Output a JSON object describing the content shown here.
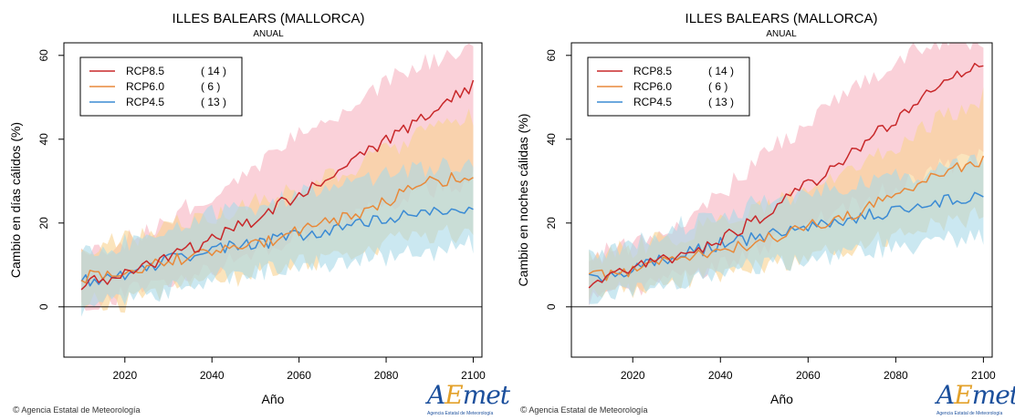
{
  "colors": {
    "RCP8.5": "#c8282a",
    "RCP6.0": "#e8893a",
    "RCP4.5": "#3b8bd4",
    "RCP8.5_band": "#f7b3c0",
    "RCP6.0_band": "#f8d28f",
    "RCP4.5_band": "#a8d8e8"
  },
  "credit": "Agencia Estatal de Meteorología",
  "logo": {
    "a": "A",
    "e": "E",
    "met": "met",
    "sub": "Agencia Estatal de Meteorología"
  },
  "chart_data": [
    {
      "type": "line",
      "title": "ILLES BALEARS (MALLORCA)",
      "subtitle": "ANUAL",
      "xlabel": "Año",
      "ylabel": "Cambio en días cálidos (%)",
      "xlim": [
        2006,
        2102
      ],
      "ylim": [
        -12,
        63
      ],
      "xticks": [
        2020,
        2040,
        2060,
        2080,
        2100
      ],
      "yticks": [
        0,
        20,
        40,
        60
      ],
      "grid": false,
      "zero_line": true,
      "legend_position": "top-left",
      "shaded_ranges": true,
      "series": [
        {
          "name": "RCP8.5",
          "count": "( 14 )",
          "x": [
            2010,
            2020,
            2030,
            2040,
            2050,
            2060,
            2070,
            2080,
            2090,
            2100
          ],
          "values": [
            5,
            8,
            12,
            16,
            21,
            27,
            33,
            40,
            46,
            53
          ],
          "range_low": [
            1,
            3,
            6,
            9,
            13,
            17,
            21,
            25,
            28,
            30
          ],
          "range_high": [
            13,
            16,
            21,
            27,
            34,
            41,
            47,
            54,
            59,
            62
          ]
        },
        {
          "name": "RCP6.0",
          "count": "(   6 )",
          "x": [
            2010,
            2020,
            2030,
            2040,
            2050,
            2060,
            2070,
            2080,
            2090,
            2100
          ],
          "values": [
            7,
            8,
            11,
            13,
            15,
            18,
            21,
            25,
            30,
            31
          ],
          "range_low": [
            1,
            1,
            4,
            6,
            8,
            10,
            12,
            15,
            17,
            18
          ],
          "range_high": [
            14,
            16,
            19,
            22,
            25,
            28,
            32,
            37,
            43,
            45
          ]
        },
        {
          "name": "RCP4.5",
          "count": "( 13 )",
          "x": [
            2010,
            2020,
            2030,
            2040,
            2050,
            2060,
            2070,
            2080,
            2090,
            2100
          ],
          "values": [
            6,
            8,
            11,
            14,
            15,
            17,
            19,
            21,
            22,
            24
          ],
          "range_low": [
            0,
            2,
            4,
            7,
            8,
            10,
            11,
            12,
            13,
            15
          ],
          "range_high": [
            12,
            15,
            19,
            22,
            24,
            27,
            29,
            32,
            33,
            35
          ]
        }
      ]
    },
    {
      "type": "line",
      "title": "ILLES BALEARS (MALLORCA)",
      "subtitle": "ANUAL",
      "xlabel": "Año",
      "ylabel": "Cambio en noches cálidas (%)",
      "xlim": [
        2006,
        2102
      ],
      "ylim": [
        -12,
        63
      ],
      "xticks": [
        2020,
        2040,
        2060,
        2080,
        2100
      ],
      "yticks": [
        0,
        20,
        40,
        60
      ],
      "grid": false,
      "zero_line": true,
      "legend_position": "top-left",
      "shaded_ranges": true,
      "series": [
        {
          "name": "RCP8.5",
          "count": "( 14 )",
          "x": [
            2010,
            2020,
            2030,
            2040,
            2050,
            2060,
            2070,
            2080,
            2090,
            2100
          ],
          "values": [
            6,
            9,
            12,
            16,
            22,
            29,
            37,
            45,
            53,
            58
          ],
          "range_low": [
            2,
            4,
            7,
            10,
            14,
            19,
            24,
            29,
            33,
            36
          ],
          "range_high": [
            12,
            15,
            20,
            27,
            36,
            44,
            52,
            59,
            63,
            63
          ]
        },
        {
          "name": "RCP6.0",
          "count": "(   6 )",
          "x": [
            2010,
            2020,
            2030,
            2040,
            2050,
            2060,
            2070,
            2080,
            2090,
            2100
          ],
          "values": [
            7,
            9,
            11,
            13,
            16,
            19,
            22,
            27,
            32,
            35
          ],
          "range_low": [
            3,
            4,
            6,
            8,
            10,
            12,
            14,
            17,
            20,
            22
          ],
          "range_high": [
            12,
            14,
            17,
            20,
            24,
            28,
            33,
            38,
            45,
            50
          ]
        },
        {
          "name": "RCP4.5",
          "count": "( 13 )",
          "x": [
            2010,
            2020,
            2030,
            2040,
            2050,
            2060,
            2070,
            2080,
            2090,
            2100
          ],
          "values": [
            7,
            9,
            12,
            15,
            17,
            19,
            21,
            23,
            25,
            27
          ],
          "range_low": [
            2,
            4,
            6,
            8,
            10,
            11,
            13,
            14,
            16,
            17
          ],
          "range_high": [
            12,
            15,
            19,
            22,
            25,
            27,
            29,
            31,
            33,
            35
          ]
        }
      ]
    }
  ]
}
